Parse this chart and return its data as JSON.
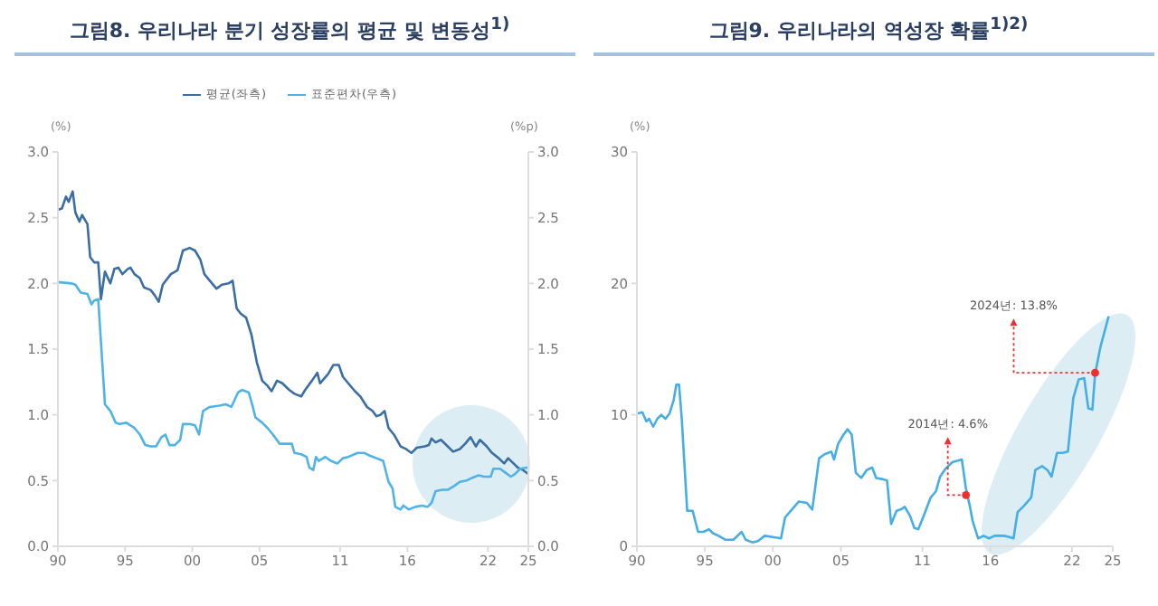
{
  "chart_data": [
    {
      "type": "line",
      "title": "그림8. 우리나라 분기 성장률의 평균 및 변동성$^{1)}$",
      "ylabel": "(%)",
      "y2label": "(%p)",
      "legend": "top",
      "xlim": [
        1990,
        2025
      ],
      "xticks": [
        {
          "value": 1990,
          "label": "90"
        },
        {
          "value": 1995,
          "label": "95"
        },
        {
          "value": 2000,
          "label": "00"
        },
        {
          "value": 2005,
          "label": "05"
        },
        {
          "value": 2011,
          "label": "11"
        },
        {
          "value": 2016,
          "label": "16"
        },
        {
          "value": 2022,
          "label": "22"
        },
        {
          "value": 2025,
          "label": "25"
        }
      ],
      "ylim": [
        0,
        3
      ],
      "yticks": [
        {
          "value": 0,
          "label": "0.0"
        },
        0.5,
        {
          "value": 1,
          "label": "1.0"
        },
        1.5,
        {
          "value": 2,
          "label": "2.0"
        },
        2.5,
        {
          "value": 3,
          "label": "3.0"
        }
      ],
      "y2lim": [
        0,
        3
      ],
      "y2ticks": [
        {
          "value": 0,
          "label": "0.0"
        },
        0.5,
        {
          "value": 1,
          "label": "1.0"
        },
        1.5,
        {
          "value": 2,
          "label": "2.0"
        },
        2.5,
        {
          "value": 3,
          "label": "3.0"
        }
      ],
      "series": [
        {
          "name": "평균(좌측)",
          "color": "#3a6ea5",
          "x": [
            1990.0,
            1990.3,
            1990.6,
            1990.8,
            1991.1,
            1991.3,
            1991.6,
            1991.8,
            1992.2,
            1992.4,
            1992.7,
            1993.0,
            1993.2,
            1993.5,
            1993.9,
            1994.2,
            1994.5,
            1994.8,
            1995.2,
            1995.4,
            1995.7,
            1996.1,
            1996.4,
            1996.9,
            1997.2,
            1997.5,
            1997.8,
            1998.4,
            1998.9,
            1999.3,
            1999.8,
            2000.2,
            2000.6,
            2000.9,
            2001.3,
            2001.8,
            2002.2,
            2002.7,
            2003.0,
            2003.3,
            2003.6,
            2004.0,
            2004.4,
            2004.8,
            2005.2,
            2005.6,
            2005.9,
            2006.3,
            2006.7,
            2007.2,
            2007.6,
            2008.1,
            2008.4,
            2008.9,
            2009.3,
            2009.5,
            2010.1,
            2010.5,
            2010.9,
            2011.2,
            2011.6,
            2012.1,
            2012.5,
            2013.0,
            2013.4,
            2013.7,
            2014.0,
            2014.3,
            2014.6,
            2015.0,
            2015.5,
            2015.9,
            2016.3,
            2016.7,
            2017.3,
            2017.6,
            2017.8,
            2018.1,
            2018.5,
            2019.0,
            2019.4,
            2019.9,
            2020.3,
            2020.7,
            2021.1,
            2021.4,
            2021.9,
            2022.3,
            2022.8,
            2023.2,
            2023.5,
            2023.9,
            2024.2,
            2024.6,
            2025.0
          ],
          "values": [
            2.56,
            2.57,
            2.66,
            2.62,
            2.7,
            2.54,
            2.47,
            2.52,
            2.45,
            2.2,
            2.16,
            2.16,
            1.88,
            2.09,
            2.0,
            2.11,
            2.12,
            2.07,
            2.11,
            2.12,
            2.07,
            2.04,
            1.97,
            1.95,
            1.91,
            1.86,
            1.99,
            2.07,
            2.1,
            2.25,
            2.27,
            2.25,
            2.18,
            2.07,
            2.02,
            1.96,
            1.99,
            2.0,
            2.02,
            1.81,
            1.77,
            1.74,
            1.61,
            1.4,
            1.26,
            1.22,
            1.18,
            1.26,
            1.24,
            1.19,
            1.16,
            1.14,
            1.19,
            1.26,
            1.32,
            1.24,
            1.31,
            1.38,
            1.38,
            1.29,
            1.24,
            1.18,
            1.14,
            1.06,
            1.03,
            0.99,
            1.0,
            1.03,
            0.9,
            0.85,
            0.76,
            0.74,
            0.71,
            0.75,
            0.76,
            0.77,
            0.82,
            0.79,
            0.81,
            0.76,
            0.72,
            0.74,
            0.78,
            0.83,
            0.76,
            0.81,
            0.76,
            0.71,
            0.67,
            0.63,
            0.67,
            0.63,
            0.6,
            0.58,
            0.55
          ]
        },
        {
          "name": "표준편차(우측)",
          "color": "#4fb3e8",
          "axis": "y2",
          "x": [
            1990.0,
            1991.0,
            1991.3,
            1991.7,
            1992.2,
            1992.5,
            1992.7,
            1993.0,
            1993.3,
            1993.5,
            1993.9,
            1994.3,
            1994.6,
            1995.1,
            1995.4,
            1995.7,
            1996.1,
            1996.5,
            1996.9,
            1997.3,
            1997.7,
            1998.0,
            1998.3,
            1998.7,
            1999.1,
            1999.3,
            1999.8,
            2000.2,
            2000.5,
            2000.8,
            2001.3,
            2002.0,
            2002.5,
            2002.9,
            2003.4,
            2003.7,
            2004.2,
            2004.5,
            2004.7,
            2005.2,
            2005.6,
            2006.0,
            2006.5,
            2006.9,
            2007.4,
            2007.6,
            2008.1,
            2008.5,
            2008.7,
            2009.0,
            2009.2,
            2009.4,
            2009.9,
            2010.3,
            2010.8,
            2011.2,
            2011.6,
            2012.3,
            2012.8,
            2013.2,
            2013.7,
            2014.2,
            2014.6,
            2014.9,
            2015.1,
            2015.5,
            2015.7,
            2016.1,
            2016.6,
            2017.1,
            2017.5,
            2017.8,
            2018.1,
            2018.6,
            2019.0,
            2019.5,
            2019.9,
            2020.4,
            2020.8,
            2021.3,
            2021.7,
            2022.2,
            2022.4,
            2022.9,
            2023.3,
            2023.7,
            2024.0,
            2024.4,
            2025.0
          ],
          "values": [
            2.01,
            2.0,
            1.99,
            1.93,
            1.92,
            1.84,
            1.87,
            1.88,
            1.4,
            1.08,
            1.03,
            0.94,
            0.93,
            0.94,
            0.92,
            0.9,
            0.85,
            0.77,
            0.76,
            0.76,
            0.83,
            0.85,
            0.77,
            0.77,
            0.81,
            0.93,
            0.93,
            0.92,
            0.85,
            1.03,
            1.06,
            1.07,
            1.08,
            1.06,
            1.17,
            1.19,
            1.17,
            1.06,
            0.98,
            0.94,
            0.9,
            0.85,
            0.78,
            0.78,
            0.78,
            0.71,
            0.7,
            0.68,
            0.6,
            0.58,
            0.68,
            0.65,
            0.68,
            0.65,
            0.63,
            0.67,
            0.68,
            0.71,
            0.71,
            0.69,
            0.67,
            0.65,
            0.49,
            0.44,
            0.3,
            0.28,
            0.31,
            0.28,
            0.3,
            0.31,
            0.3,
            0.33,
            0.42,
            0.43,
            0.43,
            0.46,
            0.49,
            0.5,
            0.52,
            0.54,
            0.53,
            0.53,
            0.59,
            0.59,
            0.56,
            0.53,
            0.55,
            0.59,
            0.6
          ]
        }
      ]
    },
    {
      "type": "line",
      "title": "그림9. 우리나라의 역성장 확률$^{1)2)}$",
      "ylabel": "(%)",
      "xlim": [
        1990,
        2025
      ],
      "xticks": [
        {
          "value": 1990,
          "label": "90"
        },
        {
          "value": 1995,
          "label": "95"
        },
        {
          "value": 2000,
          "label": "00"
        },
        {
          "value": 2005,
          "label": "05"
        },
        {
          "value": 2011,
          "label": "11"
        },
        {
          "value": 2016,
          "label": "16"
        },
        {
          "value": 2022,
          "label": "22"
        },
        {
          "value": 2025,
          "label": "25"
        }
      ],
      "ylim": [
        0,
        30
      ],
      "yticks": [
        0,
        10,
        20,
        30
      ],
      "annotations": [
        {
          "text": "2014년: 4.6%",
          "x": 2014.2,
          "y": 3.9
        },
        {
          "text": "2024년: 13.8%",
          "x": 2023.7,
          "y": 13.2
        }
      ],
      "series": [
        {
          "color": "#45aee6",
          "x": [
            1990.0,
            1990.4,
            1990.7,
            1990.9,
            1991.2,
            1991.5,
            1991.8,
            1992.1,
            1992.4,
            1992.7,
            1992.9,
            1993.1,
            1993.3,
            1993.7,
            1994.1,
            1994.5,
            1994.9,
            1995.3,
            1995.6,
            1996.0,
            1996.5,
            1997.1,
            1997.7,
            1998.0,
            1998.5,
            1998.9,
            1999.4,
            2000.0,
            2000.6,
            2000.9,
            2001.4,
            2001.9,
            2002.5,
            2002.9,
            2003.4,
            2003.8,
            2004.3,
            2004.5,
            2004.8,
            2005.2,
            2005.5,
            2005.8,
            2006.1,
            2006.5,
            2006.9,
            2007.3,
            2007.6,
            2008.1,
            2008.4,
            2008.7,
            2009.1,
            2009.4,
            2009.7,
            2010.1,
            2010.4,
            2010.7,
            2011.2,
            2011.6,
            2012.0,
            2012.3,
            2012.7,
            2013.2,
            2013.9,
            2014.2,
            2014.5,
            2014.7,
            2015.1,
            2015.5,
            2015.9,
            2016.3,
            2017.0,
            2017.4,
            2017.7,
            2018.0,
            2018.4,
            2019.0,
            2019.3,
            2019.8,
            2020.2,
            2020.5,
            2020.9,
            2021.3,
            2021.7,
            2022.1,
            2022.5,
            2022.9,
            2023.2,
            2023.5,
            2023.7,
            2024.1,
            2024.7
          ],
          "values": [
            10.1,
            10.2,
            9.5,
            9.7,
            9.1,
            9.7,
            10.0,
            9.7,
            10.1,
            11.1,
            12.3,
            12.3,
            9.7,
            2.7,
            2.7,
            1.1,
            1.1,
            1.3,
            1.0,
            0.8,
            0.5,
            0.5,
            1.1,
            0.5,
            0.3,
            0.4,
            0.8,
            0.7,
            0.6,
            2.2,
            2.8,
            3.4,
            3.3,
            2.8,
            6.7,
            7.0,
            7.2,
            6.6,
            7.8,
            8.5,
            8.9,
            8.5,
            5.6,
            5.2,
            5.8,
            6.0,
            5.2,
            5.1,
            5.0,
            1.7,
            2.7,
            2.8,
            3.0,
            2.3,
            1.4,
            1.3,
            2.6,
            3.7,
            4.2,
            5.3,
            5.9,
            6.4,
            6.6,
            4.4,
            3.0,
            1.9,
            0.6,
            0.8,
            0.6,
            0.8,
            0.8,
            0.7,
            0.6,
            2.6,
            3.0,
            3.7,
            5.8,
            6.1,
            5.8,
            5.3,
            7.1,
            7.1,
            7.2,
            11.3,
            12.7,
            12.8,
            10.5,
            10.4,
            13.1,
            15.2,
            17.5
          ]
        }
      ]
    }
  ]
}
